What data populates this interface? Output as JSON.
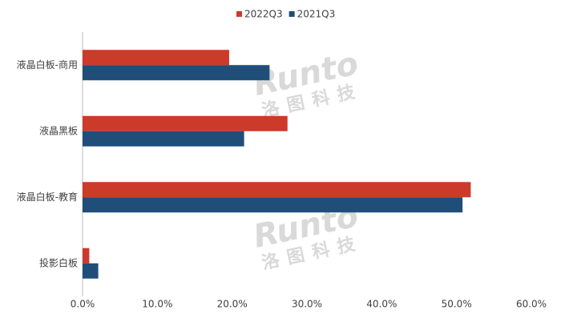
{
  "chart_data": {
    "type": "hbar",
    "categories": [
      "液晶白板-商用",
      "液晶黑板",
      "液晶白板-教育",
      "投影白板"
    ],
    "series": [
      {
        "name": "2022Q3",
        "color": "#cc3a2a",
        "values": [
          19.6,
          27.4,
          51.9,
          0.9
        ]
      },
      {
        "name": "2021Q3",
        "color": "#1f4e79",
        "values": [
          25.0,
          21.6,
          50.8,
          2.1
        ]
      }
    ],
    "xlim": [
      0,
      60
    ],
    "xticks": [
      {
        "value": 0,
        "label": "0.0%"
      },
      {
        "value": 10,
        "label": "10.0%"
      },
      {
        "value": 20,
        "label": "20.0%"
      },
      {
        "value": 30,
        "label": "30.0%"
      },
      {
        "value": 40,
        "label": "40.0%"
      },
      {
        "value": 50,
        "label": "50.0%"
      },
      {
        "value": 60,
        "label": "60.0%"
      }
    ],
    "legend": "top",
    "watermark": {
      "brand": "Runto",
      "name": "洛图科技"
    }
  }
}
